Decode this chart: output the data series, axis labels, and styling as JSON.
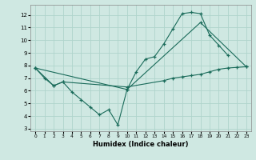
{
  "xlabel": "Humidex (Indice chaleur)",
  "bg_color": "#cfe8e2",
  "grid_color": "#afd4cc",
  "line_color": "#1a6b5a",
  "xlim": [
    -0.5,
    23.5
  ],
  "ylim": [
    2.8,
    12.8
  ],
  "xticks": [
    0,
    1,
    2,
    3,
    4,
    5,
    6,
    7,
    8,
    9,
    10,
    11,
    12,
    13,
    14,
    15,
    16,
    17,
    18,
    19,
    20,
    21,
    22,
    23
  ],
  "yticks": [
    3,
    4,
    5,
    6,
    7,
    8,
    9,
    10,
    11,
    12
  ],
  "line1_x": [
    0,
    1,
    2,
    3,
    4,
    5,
    6,
    7,
    8,
    9,
    10,
    11,
    12,
    13,
    14,
    15,
    16,
    17,
    18,
    19,
    20,
    21
  ],
  "line1_y": [
    7.8,
    7.0,
    6.4,
    6.7,
    5.9,
    5.3,
    4.7,
    4.1,
    4.5,
    3.3,
    6.1,
    7.5,
    8.5,
    8.7,
    9.7,
    10.9,
    12.1,
    12.2,
    12.1,
    10.4,
    9.6,
    8.8
  ],
  "line2_x": [
    0,
    10,
    18,
    23
  ],
  "line2_y": [
    7.8,
    6.1,
    11.4,
    7.9
  ],
  "line3_x": [
    0,
    2,
    3,
    10,
    14,
    15,
    16,
    17,
    18,
    19,
    20,
    21,
    22,
    23
  ],
  "line3_y": [
    7.8,
    6.4,
    6.7,
    6.3,
    6.8,
    7.0,
    7.1,
    7.2,
    7.3,
    7.5,
    7.7,
    7.8,
    7.85,
    7.9
  ]
}
